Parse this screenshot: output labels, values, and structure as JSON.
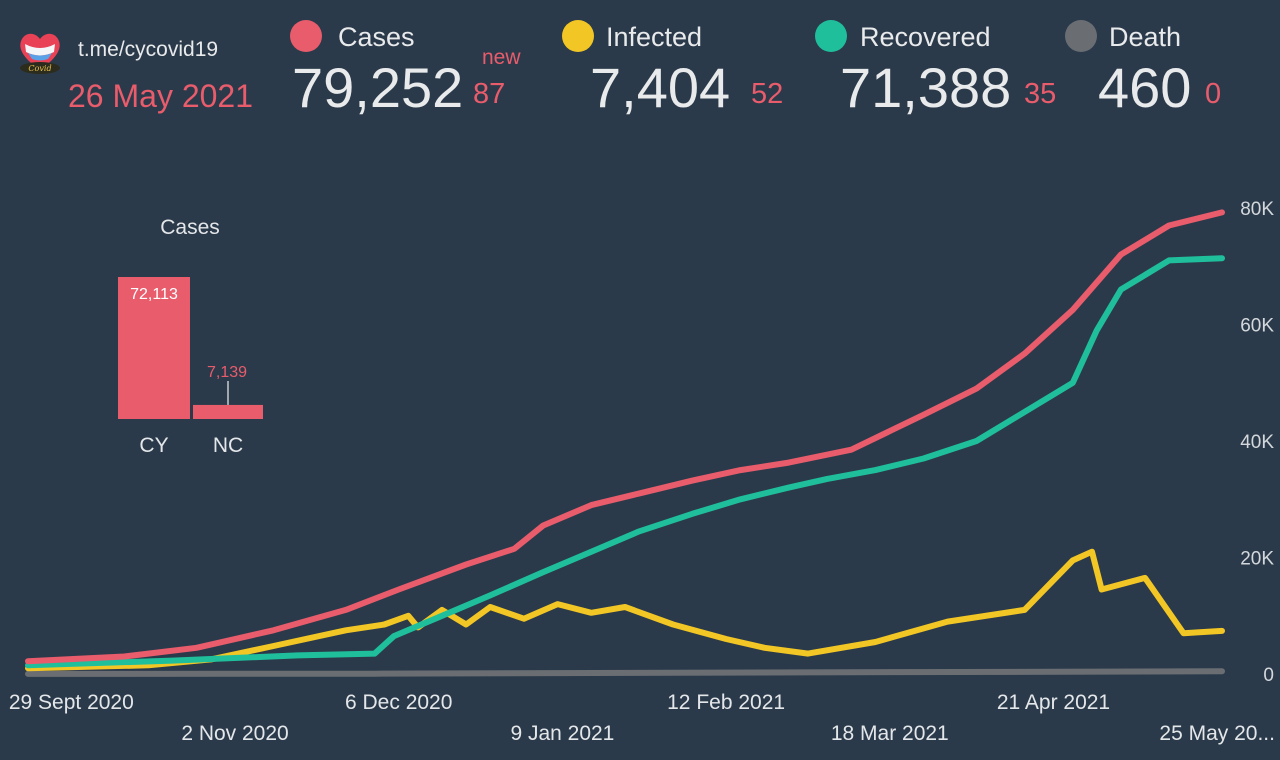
{
  "header": {
    "channel": "t.me/cycovid19",
    "date": "26 May 2021",
    "new_label": "new",
    "stats": [
      {
        "label": "Cases",
        "value": "79,252",
        "new": "87",
        "color": "#e85c6c"
      },
      {
        "label": "Infected",
        "value": "7,404",
        "new": "52",
        "color": "#f2c624"
      },
      {
        "label": "Recovered",
        "value": "71,388",
        "new": "35",
        "color": "#1fbf9c"
      },
      {
        "label": "Death",
        "value": "460",
        "new": "0",
        "color": "#6a6e73"
      }
    ]
  },
  "chart_data": [
    {
      "type": "line",
      "title": "",
      "x_axis": "date",
      "x_start": "2020-09-20",
      "x_end": "2021-05-26",
      "x_tick_labels": [
        "29 Sept 2020",
        "2 Nov 2020",
        "6 Dec 2020",
        "9 Jan 2021",
        "12 Feb 2021",
        "18 Mar 2021",
        "21 Apr 2021",
        "25 May 20..."
      ],
      "x_tick_dates": [
        "2020-09-29",
        "2020-11-02",
        "2020-12-06",
        "2021-01-09",
        "2021-02-12",
        "2021-03-18",
        "2021-04-21",
        "2021-05-25"
      ],
      "y_tick_labels": [
        "0",
        "20K",
        "40K",
        "60K",
        "80K"
      ],
      "y_tick_values": [
        0,
        20000,
        40000,
        60000,
        80000
      ],
      "ylim": [
        0,
        80000
      ],
      "y_axis_side": "right",
      "series": [
        {
          "name": "Cases",
          "color": "#e85c6c",
          "dates": [
            "2020-09-20",
            "2020-10-10",
            "2020-10-25",
            "2020-11-10",
            "2020-11-25",
            "2020-12-06",
            "2020-12-20",
            "2020-12-30",
            "2021-01-05",
            "2021-01-15",
            "2021-01-25",
            "2021-02-05",
            "2021-02-15",
            "2021-02-25",
            "2021-03-10",
            "2021-03-25",
            "2021-04-05",
            "2021-04-15",
            "2021-04-25",
            "2021-05-05",
            "2021-05-15",
            "2021-05-26"
          ],
          "values": [
            2200,
            3000,
            4500,
            7500,
            11000,
            14500,
            18800,
            21500,
            25500,
            29000,
            31000,
            33200,
            35000,
            36300,
            38500,
            44500,
            49000,
            55000,
            62500,
            72000,
            77000,
            79252
          ]
        },
        {
          "name": "Infected",
          "color": "#f2c624",
          "dates": [
            "2020-09-20",
            "2020-10-15",
            "2020-10-28",
            "2020-11-10",
            "2020-11-25",
            "2020-12-03",
            "2020-12-08",
            "2020-12-10",
            "2020-12-15",
            "2020-12-20",
            "2020-12-25",
            "2021-01-01",
            "2021-01-08",
            "2021-01-15",
            "2021-01-22",
            "2021-02-01",
            "2021-02-12",
            "2021-02-20",
            "2021-03-01",
            "2021-03-15",
            "2021-03-30",
            "2021-04-15",
            "2021-04-25",
            "2021-04-29",
            "2021-05-01",
            "2021-05-10",
            "2021-05-18",
            "2021-05-26"
          ],
          "values": [
            1000,
            1500,
            2500,
            4800,
            7500,
            8500,
            10000,
            8000,
            11000,
            8500,
            11500,
            9500,
            12000,
            10500,
            11500,
            8500,
            6000,
            4500,
            3500,
            5500,
            9000,
            11000,
            19500,
            21000,
            14500,
            16500,
            7000,
            7404
          ]
        },
        {
          "name": "Recovered",
          "color": "#1fbf9c",
          "dates": [
            "2020-09-20",
            "2020-10-20",
            "2020-11-15",
            "2020-12-01",
            "2020-12-05",
            "2020-12-15",
            "2020-12-25",
            "2021-01-05",
            "2021-01-15",
            "2021-01-25",
            "2021-02-05",
            "2021-02-15",
            "2021-02-25",
            "2021-03-05",
            "2021-03-15",
            "2021-03-25",
            "2021-04-05",
            "2021-04-15",
            "2021-04-25",
            "2021-04-30",
            "2021-05-05",
            "2021-05-15",
            "2021-05-26"
          ],
          "values": [
            1500,
            2300,
            3200,
            3500,
            6500,
            10000,
            13500,
            17500,
            21000,
            24500,
            27500,
            30000,
            32000,
            33500,
            35000,
            37000,
            40000,
            45000,
            50000,
            59000,
            66000,
            71000,
            71388
          ]
        },
        {
          "name": "Death",
          "color": "#6a6e73",
          "dates": [
            "2020-09-20",
            "2020-12-01",
            "2021-02-01",
            "2021-04-01",
            "2021-05-26"
          ],
          "values": [
            20,
            60,
            230,
            340,
            460
          ]
        }
      ]
    },
    {
      "type": "bar",
      "title": "Cases",
      "categories": [
        "CY",
        "NC"
      ],
      "values": [
        72113,
        7139
      ],
      "value_labels": [
        "72,113",
        "7,139"
      ],
      "color": "#e85c6c"
    }
  ]
}
